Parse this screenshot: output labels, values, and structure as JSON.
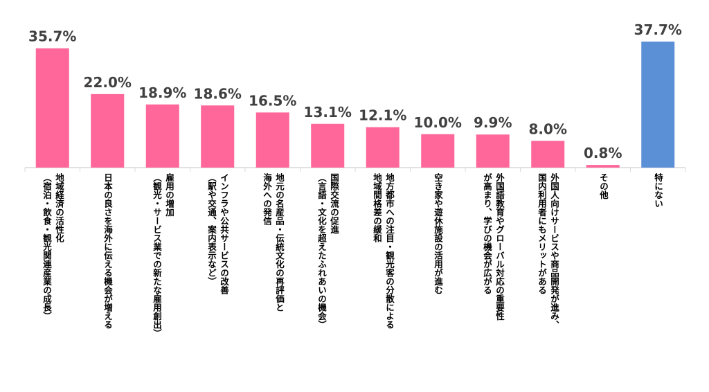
{
  "chart_data": {
    "type": "bar",
    "categories": [
      "地域経済の活性化\n（宿泊・飲食・観光関連産業の成長）",
      "日本の良さを海外に伝える機会が増える",
      "雇用の増加\n（観光・サービス業での新たな雇用創出）",
      "インフラや公共サービスの改善\n（駅や交通、案内表示など）",
      "地元の名産品・伝統文化の再評価と\n海外への発信",
      "国際交流の促進\n（言語・文化を超えたふれあいの機会）",
      "地方都市への注目・観光客の分散による\n地域間格差の緩和",
      "空き家や遊休施設の活用が進む",
      "外国語教育やグローバル対応の重要性\nが高まり、学びの機会が広がる",
      "外国人向けサービスや商品開発が進み、\n国内利用者にもメリットがある",
      "その他",
      "特にない"
    ],
    "values": [
      35.7,
      22.0,
      18.9,
      18.6,
      16.5,
      13.1,
      12.1,
      10.0,
      9.9,
      8.0,
      0.8,
      37.7
    ],
    "value_labels": [
      "35.7%",
      "22.0%",
      "18.9%",
      "18.6%",
      "16.5%",
      "13.1%",
      "12.1%",
      "10.0%",
      "9.9%",
      "8.0%",
      "0.8%",
      "37.7%"
    ],
    "colors": [
      "#FF6699",
      "#FF6699",
      "#FF6699",
      "#FF6699",
      "#FF6699",
      "#FF6699",
      "#FF6699",
      "#FF6699",
      "#FF6699",
      "#FF6699",
      "#FF6699",
      "#5B8FD6"
    ],
    "title": "",
    "xlabel": "",
    "ylabel": "",
    "ylim": [
      0,
      40
    ],
    "grid": false,
    "legend": "none"
  },
  "style": {
    "axis_color": "#D9D9D9",
    "label_color": "#404040"
  }
}
